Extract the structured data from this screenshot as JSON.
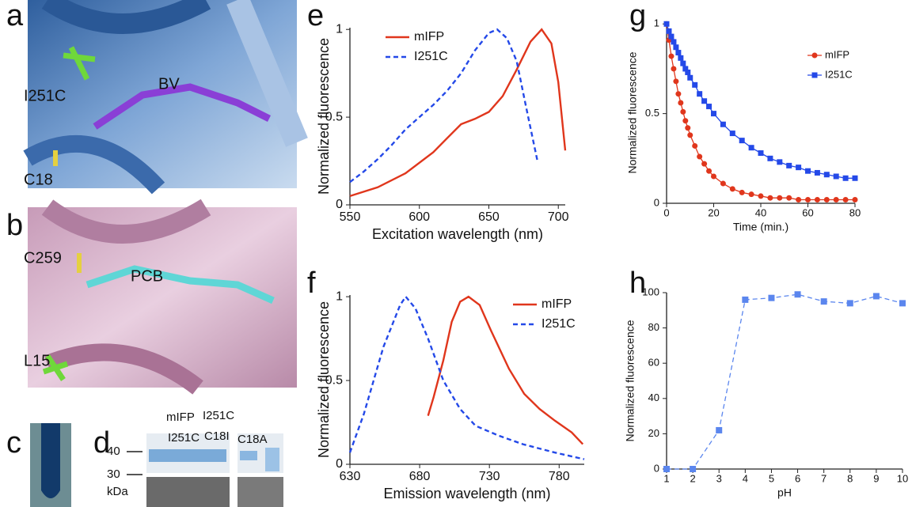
{
  "panels": {
    "a": {
      "label": "a",
      "annotations": [
        "I251C",
        "BV",
        "C18"
      ]
    },
    "b": {
      "label": "b",
      "annotations": [
        "C259",
        "PCB",
        "L15"
      ]
    },
    "c": {
      "label": "c"
    },
    "d": {
      "label": "d",
      "lanes": [
        "mIFP",
        "I251C",
        "I251C",
        "C18I",
        "C18A"
      ],
      "markers": [
        "40",
        "30"
      ],
      "unit": "kDa"
    }
  },
  "chart_data": [
    {
      "type": "line",
      "panel": "e",
      "xlabel": "Excitation wavelength (nm)",
      "ylabel": "Normalized fluorescence",
      "xlim": [
        550,
        705
      ],
      "xticks": [
        550,
        600,
        650,
        700
      ],
      "ylim": [
        0,
        1.01
      ],
      "yticks": [
        0,
        0.5,
        1
      ],
      "legend": "upper left",
      "series": [
        {
          "name": "mIFP",
          "color": "#e0361c",
          "dash": false,
          "x": [
            550,
            570,
            590,
            610,
            620,
            630,
            640,
            650,
            660,
            670,
            680,
            688,
            695,
            700,
            705
          ],
          "values": [
            0.05,
            0.1,
            0.18,
            0.3,
            0.38,
            0.46,
            0.49,
            0.53,
            0.62,
            0.77,
            0.93,
            1.0,
            0.92,
            0.7,
            0.31
          ]
        },
        {
          "name": "I251C",
          "color": "#2449e8",
          "dash": true,
          "x": [
            550,
            560,
            570,
            580,
            590,
            600,
            610,
            620,
            630,
            640,
            650,
            656,
            663,
            670,
            677,
            685
          ],
          "values": [
            0.13,
            0.19,
            0.26,
            0.34,
            0.43,
            0.5,
            0.57,
            0.65,
            0.75,
            0.88,
            0.98,
            1.0,
            0.95,
            0.82,
            0.55,
            0.25
          ]
        }
      ]
    },
    {
      "type": "line",
      "panel": "f",
      "xlabel": "Emission wavelength (nm)",
      "ylabel": "Normalized fluorescence",
      "xlim": [
        630,
        798
      ],
      "xticks": [
        630,
        680,
        730,
        780
      ],
      "ylim": [
        0,
        1.01
      ],
      "yticks": [
        0,
        0.5,
        1
      ],
      "legend": "upper right",
      "series": [
        {
          "name": "mIFP",
          "color": "#e0361c",
          "dash": false,
          "x": [
            686,
            690,
            697,
            703,
            709,
            715,
            723,
            731,
            744,
            755,
            766,
            777,
            789,
            797
          ],
          "values": [
            0.29,
            0.4,
            0.62,
            0.85,
            0.97,
            1.0,
            0.95,
            0.8,
            0.57,
            0.42,
            0.33,
            0.26,
            0.19,
            0.12
          ]
        },
        {
          "name": "I251C",
          "color": "#2449e8",
          "dash": true,
          "x": [
            630,
            640,
            654,
            666,
            670,
            677,
            686,
            697,
            709,
            720,
            737,
            754,
            777,
            798
          ],
          "values": [
            0.07,
            0.3,
            0.7,
            0.95,
            1.0,
            0.93,
            0.75,
            0.5,
            0.33,
            0.23,
            0.17,
            0.12,
            0.07,
            0.03
          ]
        }
      ]
    },
    {
      "type": "line",
      "panel": "g",
      "xlabel": "Time (min.)",
      "ylabel": "Normalized fluorescence",
      "xlim": [
        0,
        80
      ],
      "xticks": [
        0,
        20,
        40,
        60,
        80
      ],
      "ylim": [
        0,
        1.01
      ],
      "yticks": [
        0,
        0.5,
        1
      ],
      "legend": "upper right",
      "series": [
        {
          "name": "mIFP",
          "color": "#e0361c",
          "dash": false,
          "marker": "circle",
          "x": [
            0,
            1,
            2,
            3,
            4,
            5,
            6,
            7,
            8,
            9,
            10,
            12,
            14,
            16,
            18,
            20,
            24,
            28,
            32,
            36,
            40,
            44,
            48,
            52,
            56,
            60,
            64,
            68,
            72,
            76,
            80
          ],
          "values": [
            1.0,
            0.91,
            0.82,
            0.75,
            0.68,
            0.61,
            0.56,
            0.51,
            0.46,
            0.42,
            0.38,
            0.32,
            0.26,
            0.22,
            0.18,
            0.15,
            0.11,
            0.08,
            0.06,
            0.05,
            0.04,
            0.03,
            0.03,
            0.03,
            0.02,
            0.02,
            0.02,
            0.02,
            0.02,
            0.02,
            0.02
          ]
        },
        {
          "name": "I251C",
          "color": "#2449e8",
          "dash": false,
          "marker": "square",
          "x": [
            0,
            1,
            2,
            3,
            4,
            5,
            6,
            7,
            8,
            9,
            10,
            12,
            14,
            16,
            18,
            20,
            24,
            28,
            32,
            36,
            40,
            44,
            48,
            52,
            56,
            60,
            64,
            68,
            72,
            76,
            80
          ],
          "values": [
            1.0,
            0.96,
            0.93,
            0.9,
            0.87,
            0.84,
            0.81,
            0.78,
            0.75,
            0.73,
            0.7,
            0.66,
            0.61,
            0.57,
            0.54,
            0.5,
            0.44,
            0.39,
            0.35,
            0.31,
            0.28,
            0.25,
            0.23,
            0.21,
            0.2,
            0.18,
            0.17,
            0.16,
            0.15,
            0.14,
            0.14
          ]
        }
      ]
    },
    {
      "type": "line",
      "panel": "h",
      "xlabel": "pH",
      "ylabel": "Normalized fluorescence",
      "xlim": [
        1,
        10
      ],
      "xticks": [
        1,
        2,
        3,
        4,
        5,
        6,
        7,
        8,
        9,
        10
      ],
      "ylim": [
        0,
        100
      ],
      "yticks": [
        0,
        20,
        40,
        60,
        80,
        100
      ],
      "series": [
        {
          "color": "#5b86ee",
          "dash": true,
          "marker": "square",
          "x": [
            1,
            2,
            3,
            4,
            5,
            6,
            7,
            8,
            9,
            10
          ],
          "values": [
            0,
            0,
            22,
            96,
            97,
            99,
            95,
            94,
            98,
            94
          ]
        }
      ]
    }
  ]
}
